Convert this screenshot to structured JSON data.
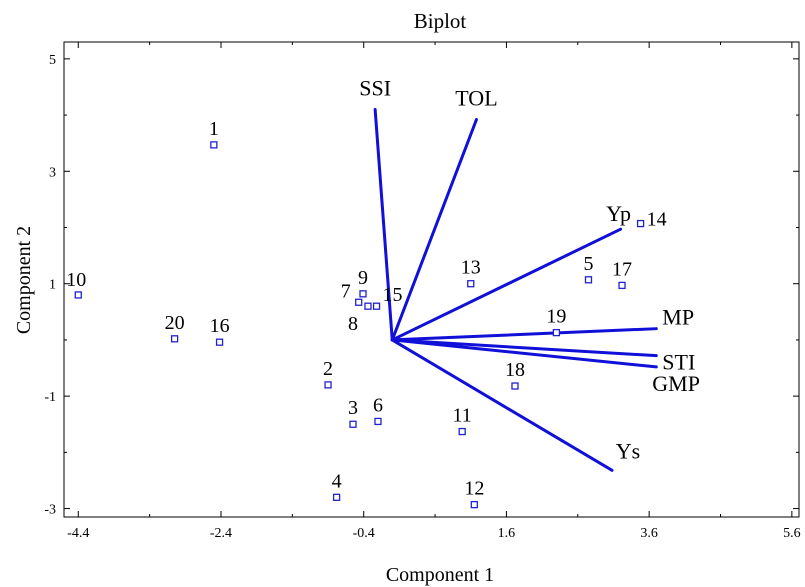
{
  "chart_data": {
    "type": "scatter",
    "title": "Biplot",
    "xlabel": "Component 1",
    "ylabel": "Component 2",
    "xlim": [
      -4.6,
      5.7
    ],
    "ylim": [
      -3.15,
      5.3
    ],
    "grid": false,
    "x_ticks": [
      -4.4,
      -2.4,
      -0.4,
      1.6,
      3.6,
      5.6
    ],
    "y_ticks": [
      -3,
      -1,
      1,
      3,
      5
    ],
    "x_tick_labels": [
      "-4.4",
      "-2.4",
      "-0.4",
      "1.6",
      "3.6",
      "5.6"
    ],
    "y_tick_labels": [
      "-3",
      "-1",
      "1",
      "3",
      "5"
    ],
    "points": [
      {
        "label": "1",
        "x": -2.5,
        "y": 3.47
      },
      {
        "label": "2",
        "x": -0.9,
        "y": -0.8
      },
      {
        "label": "3",
        "x": -0.55,
        "y": -1.5
      },
      {
        "label": "4",
        "x": -0.78,
        "y": -2.8
      },
      {
        "label": "5",
        "x": 2.75,
        "y": 1.07
      },
      {
        "label": "6",
        "x": -0.2,
        "y": -1.45
      },
      {
        "label": "7",
        "x": -0.47,
        "y": 0.67
      },
      {
        "label": "8",
        "x": -0.34,
        "y": 0.6
      },
      {
        "label": "9",
        "x": -0.41,
        "y": 0.82
      },
      {
        "label": "10",
        "x": -4.4,
        "y": 0.8
      },
      {
        "label": "11",
        "x": 0.98,
        "y": -1.63
      },
      {
        "label": "12",
        "x": 1.15,
        "y": -2.93
      },
      {
        "label": "13",
        "x": 1.1,
        "y": 1.0
      },
      {
        "label": "14",
        "x": 3.48,
        "y": 2.07
      },
      {
        "label": "15",
        "x": -0.22,
        "y": 0.6
      },
      {
        "label": "16",
        "x": -2.42,
        "y": -0.04
      },
      {
        "label": "17",
        "x": 3.22,
        "y": 0.97
      },
      {
        "label": "18",
        "x": 1.72,
        "y": -0.82
      },
      {
        "label": "19",
        "x": 2.3,
        "y": 0.13
      },
      {
        "label": "20",
        "x": -3.05,
        "y": 0.02
      }
    ],
    "vectors": [
      {
        "label": "SSI",
        "x": -0.24,
        "y": 4.1
      },
      {
        "label": "TOL",
        "x": 1.18,
        "y": 3.92
      },
      {
        "label": "Yp",
        "x": 3.2,
        "y": 1.97
      },
      {
        "label": "MP",
        "x": 3.7,
        "y": 0.2
      },
      {
        "label": "STI",
        "x": 3.7,
        "y": -0.28
      },
      {
        "label": "GMP",
        "x": 3.7,
        "y": -0.48
      },
      {
        "label": "Ys",
        "x": 3.08,
        "y": -2.32
      }
    ],
    "colors": {
      "vector": "#1010d8",
      "marker": "#2222cc"
    }
  }
}
